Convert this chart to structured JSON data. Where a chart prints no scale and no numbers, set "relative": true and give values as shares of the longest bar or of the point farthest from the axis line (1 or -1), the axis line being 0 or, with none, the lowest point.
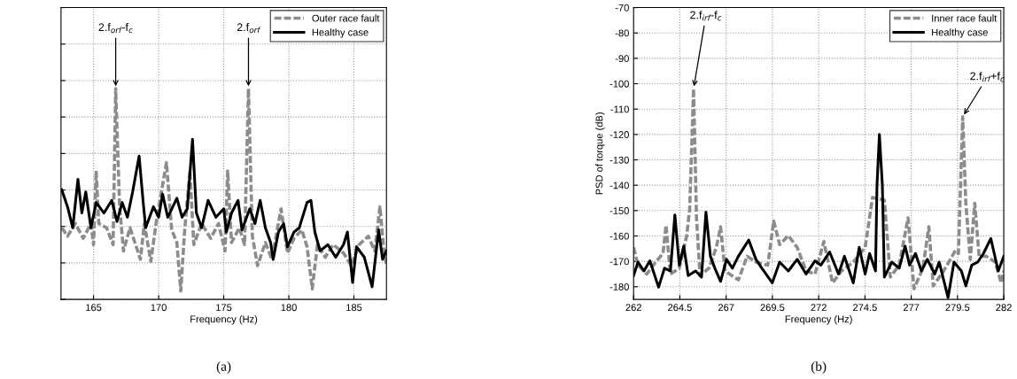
{
  "chart_data": [
    {
      "type": "line",
      "title": "(a)",
      "xlabel": "Frequency (Hz)",
      "relative": true,
      "xlim": [
        162.5,
        187.5
      ],
      "xticks": [
        165,
        170,
        175,
        180,
        185
      ],
      "tick_labels": "x",
      "grid": true,
      "legend": "top right",
      "annotations": [
        {
          "text": "2.f$_{orf}$-f$_{c}$",
          "x": 166.7,
          "y": 1.0
        },
        {
          "text": "2.f$_{orf}$",
          "x": 176.9,
          "y": 1.0
        }
      ],
      "series": [
        {
          "name": "Outer race fault",
          "color": "#8c8c8c",
          "line_style": "dashed",
          "x": [
            162.56,
            163.0,
            163.6,
            164.2,
            164.8,
            165.0,
            165.2,
            165.4,
            166.0,
            166.5,
            166.7,
            167.0,
            167.3,
            167.8,
            168.6,
            168.9,
            169.4,
            169.8,
            170.6,
            171.0,
            171.4,
            171.7,
            172.0,
            172.4,
            172.7,
            173.3,
            174.0,
            174.6,
            175.1,
            175.3,
            175.6,
            176.2,
            176.6,
            176.9,
            177.2,
            177.6,
            178.2,
            178.7,
            179.4,
            179.9,
            180.4,
            181.0,
            181.4,
            181.8,
            182.2,
            182.8,
            183.4,
            184.2,
            184.8,
            185.4,
            186.1,
            186.6,
            187.0,
            187.3,
            187.5
          ],
          "values": [
            0.34,
            0.3,
            0.36,
            0.29,
            0.36,
            0.26,
            0.61,
            0.36,
            0.34,
            0.26,
            1.0,
            0.44,
            0.23,
            0.34,
            0.19,
            0.36,
            0.18,
            0.36,
            0.65,
            0.33,
            0.27,
            0.04,
            0.33,
            0.61,
            0.26,
            0.36,
            0.29,
            0.36,
            0.23,
            0.61,
            0.27,
            0.34,
            0.26,
            1.0,
            0.3,
            0.16,
            0.27,
            0.19,
            0.43,
            0.22,
            0.29,
            0.33,
            0.25,
            0.05,
            0.26,
            0.2,
            0.26,
            0.22,
            0.16,
            0.26,
            0.3,
            0.23,
            0.44,
            0.23,
            0.16
          ]
        },
        {
          "name": "Healthy case",
          "color": "#000000",
          "line_style": "solid",
          "x": [
            162.56,
            163.0,
            163.4,
            163.8,
            164.1,
            164.4,
            164.8,
            165.2,
            165.8,
            166.4,
            166.8,
            167.2,
            167.6,
            168.0,
            168.5,
            168.8,
            169.0,
            169.6,
            170.0,
            170.3,
            170.7,
            171.4,
            171.8,
            172.2,
            172.6,
            172.9,
            173.3,
            173.8,
            174.4,
            175.0,
            175.2,
            175.6,
            176.1,
            176.4,
            177.0,
            177.4,
            177.8,
            178.2,
            178.6,
            178.8,
            179.2,
            179.6,
            179.9,
            180.4,
            180.8,
            181.4,
            181.7,
            182.0,
            182.4,
            183.0,
            183.6,
            184.2,
            184.5,
            184.9,
            185.2,
            185.8,
            186.4,
            186.9,
            187.2,
            187.5
          ],
          "values": [
            0.52,
            0.44,
            0.34,
            0.57,
            0.41,
            0.51,
            0.34,
            0.46,
            0.41,
            0.47,
            0.37,
            0.46,
            0.39,
            0.51,
            0.68,
            0.47,
            0.34,
            0.44,
            0.39,
            0.5,
            0.39,
            0.48,
            0.39,
            0.43,
            0.76,
            0.41,
            0.34,
            0.47,
            0.39,
            0.43,
            0.32,
            0.41,
            0.47,
            0.33,
            0.43,
            0.36,
            0.47,
            0.34,
            0.27,
            0.19,
            0.32,
            0.36,
            0.25,
            0.32,
            0.34,
            0.46,
            0.47,
            0.32,
            0.23,
            0.26,
            0.2,
            0.26,
            0.32,
            0.08,
            0.25,
            0.2,
            0.06,
            0.33,
            0.19,
            0.23
          ]
        }
      ]
    },
    {
      "type": "line",
      "title": "(b)",
      "xlabel": "Frequency (Hz)",
      "ylabel": "PSD of torque (dB)",
      "xlim": [
        262,
        282
      ],
      "xticks": [
        262,
        264.5,
        267,
        269.5,
        272,
        274.5,
        277,
        279.5,
        282
      ],
      "ylim": [
        -185,
        -70
      ],
      "yticks": [
        -180,
        -170,
        -160,
        -150,
        -140,
        -130,
        -120,
        -110,
        -100,
        -90,
        -80,
        -70
      ],
      "grid": true,
      "legend": "top right",
      "annotations": [
        {
          "text": "2.f$_{irf}$-f$_{c}$",
          "x": 265.24,
          "y": -102
        },
        {
          "text": "2.f$_{irf}$+f$_{c}$",
          "x": 279.78,
          "y": -113
        }
      ],
      "series": [
        {
          "name": "Inner race fault",
          "color": "#8c8c8c",
          "line_style": "dashed",
          "x": [
            262.0,
            262.24,
            262.71,
            263.19,
            263.59,
            263.75,
            263.99,
            264.47,
            264.87,
            265.03,
            265.24,
            265.4,
            265.59,
            266.07,
            266.47,
            266.7,
            266.94,
            267.66,
            268.14,
            268.61,
            269.25,
            269.57,
            269.89,
            270.36,
            270.84,
            271.32,
            271.8,
            272.28,
            272.75,
            273.23,
            273.87,
            274.51,
            274.91,
            275.55,
            275.87,
            276.35,
            276.83,
            277.15,
            277.63,
            277.95,
            278.19,
            278.75,
            279.39,
            279.55,
            279.78,
            279.95,
            280.19,
            280.43,
            280.67,
            281.06,
            281.54,
            281.86,
            282.0
          ],
          "values": [
            -164.5,
            -171.5,
            -175,
            -170.3,
            -166.9,
            -155.8,
            -175,
            -172.7,
            -159.9,
            -149.4,
            -102,
            -152.9,
            -175.6,
            -172.7,
            -164.5,
            -156.4,
            -173.8,
            -177.3,
            -168,
            -170.3,
            -171.5,
            -154.1,
            -163.4,
            -159.9,
            -164.5,
            -173.8,
            -175,
            -162.2,
            -178.5,
            -173.8,
            -170.3,
            -164.5,
            -144.8,
            -145.9,
            -176.2,
            -171.5,
            -152.9,
            -180.8,
            -172.7,
            -156.4,
            -179.7,
            -173.8,
            -165.7,
            -166.9,
            -113,
            -147.1,
            -169.2,
            -147.1,
            -168,
            -168,
            -170.3,
            -178.5,
            -173.8
          ]
        },
        {
          "name": "Healthy case",
          "color": "#000000",
          "line_style": "solid",
          "x": [
            262.0,
            262.24,
            262.56,
            262.88,
            263.35,
            263.67,
            263.99,
            264.23,
            264.47,
            264.71,
            264.95,
            265.35,
            265.67,
            265.91,
            266.15,
            266.39,
            266.7,
            267.02,
            267.34,
            267.66,
            268.22,
            268.61,
            268.93,
            269.49,
            269.89,
            270.36,
            270.84,
            271.32,
            271.8,
            272.12,
            272.59,
            273.07,
            273.39,
            273.87,
            274.19,
            274.51,
            274.75,
            275.07,
            275.15,
            275.28,
            275.44,
            275.55,
            275.95,
            276.35,
            276.67,
            276.91,
            277.23,
            277.55,
            277.87,
            278.27,
            278.51,
            278.99,
            279.31,
            279.71,
            279.95,
            280.27,
            280.59,
            280.9,
            281.3,
            281.7,
            282.0
          ],
          "values": [
            -175.6,
            -170.3,
            -173.8,
            -169.8,
            -180.2,
            -172.7,
            -173.8,
            -151.7,
            -171.5,
            -164,
            -175.6,
            -173.8,
            -176.2,
            -150.6,
            -168,
            -172.7,
            -177.9,
            -169.2,
            -172.7,
            -168,
            -161.6,
            -169.2,
            -172.7,
            -178.5,
            -170.3,
            -173.8,
            -169.2,
            -175,
            -169.8,
            -171.5,
            -166.3,
            -175,
            -168,
            -178.5,
            -164.5,
            -175,
            -166.9,
            -173.8,
            -140,
            -120,
            -140,
            -176.2,
            -170.3,
            -172.7,
            -164,
            -171.5,
            -166.9,
            -173.8,
            -169.2,
            -175,
            -170.3,
            -184.3,
            -170.3,
            -173.8,
            -179.7,
            -171.5,
            -170.3,
            -166.9,
            -161,
            -173.8,
            -168
          ]
        }
      ]
    }
  ]
}
